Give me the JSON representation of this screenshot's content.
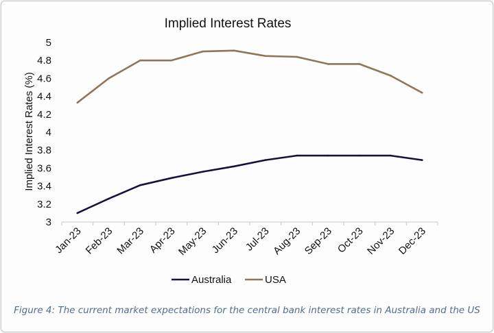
{
  "chart_data": {
    "type": "line",
    "title": "Implied Interest Rates",
    "xlabel": "",
    "ylabel": "Implied Interest Rates (%)",
    "categories": [
      "Jan-23",
      "Feb-23",
      "Mar-23",
      "Apr-23",
      "May-23",
      "Jun-23",
      "Jul-23",
      "Aug-23",
      "Sep-23",
      "Oct-23",
      "Nov-23",
      "Dec-23"
    ],
    "ylim": [
      3,
      5
    ],
    "yticks": [
      "3",
      "3.2",
      "3.4",
      "3.6",
      "3.8",
      "4",
      "4.2",
      "4.4",
      "4.6",
      "4.8",
      "5"
    ],
    "grid": false,
    "legend_position": "bottom",
    "series": [
      {
        "name": "Australia",
        "color": "#14123a",
        "values": [
          3.1,
          3.26,
          3.41,
          3.49,
          3.56,
          3.62,
          3.69,
          3.74,
          3.74,
          3.74,
          3.74,
          3.69
        ]
      },
      {
        "name": "USA",
        "color": "#8f7656",
        "values": [
          4.33,
          4.6,
          4.8,
          4.8,
          4.9,
          4.91,
          4.85,
          4.84,
          4.76,
          4.76,
          4.63,
          4.44
        ]
      }
    ]
  },
  "caption": "Figure 4: The current market expectations for the central bank interest rates in Australia and the US"
}
